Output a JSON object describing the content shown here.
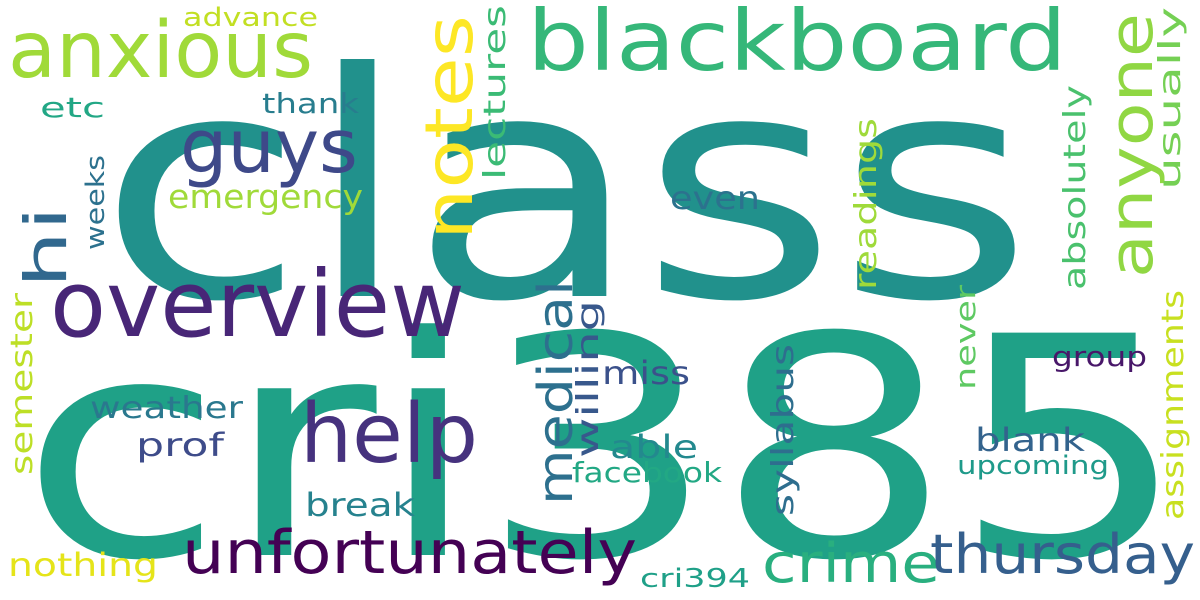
{
  "words": [
    {
      "text": "class",
      "color": "#21918c"
    },
    {
      "text": "cri385",
      "color": "#1fa187"
    },
    {
      "text": "overview",
      "color": "#482677"
    },
    {
      "text": "blackboard",
      "color": "#35b779"
    },
    {
      "text": "anxious",
      "color": "#a0da39"
    },
    {
      "text": "guys",
      "color": "#3e4989"
    },
    {
      "text": "notes",
      "color": "#fde725"
    },
    {
      "text": "help",
      "color": "#46327e"
    },
    {
      "text": "anyone",
      "color": "#90d743"
    },
    {
      "text": "hi",
      "color": "#31688e"
    },
    {
      "text": "unfortunately",
      "color": "#440154"
    },
    {
      "text": "crime",
      "color": "#29af7f"
    },
    {
      "text": "thursday",
      "color": "#355f8d"
    },
    {
      "text": "medical",
      "color": "#2d708e"
    },
    {
      "text": "emergency",
      "color": "#a0da39"
    },
    {
      "text": "lectures",
      "color": "#3bbb75"
    },
    {
      "text": "syllabus",
      "color": "#2e6e8e"
    },
    {
      "text": "readings",
      "color": "#9fda3a"
    },
    {
      "text": "absolutely",
      "color": "#4ac16d"
    },
    {
      "text": "usually",
      "color": "#75d054"
    },
    {
      "text": "assignments",
      "color": "#c8e020"
    },
    {
      "text": "semester",
      "color": "#bddf26"
    },
    {
      "text": "willing",
      "color": "#38588c"
    },
    {
      "text": "weather",
      "color": "#2a788e"
    },
    {
      "text": "never",
      "color": "#5ec962"
    },
    {
      "text": "advance",
      "color": "#c2df23"
    },
    {
      "text": "thank",
      "color": "#287d8e"
    },
    {
      "text": "etc",
      "color": "#22a785"
    },
    {
      "text": "weeks",
      "color": "#2c718e"
    },
    {
      "text": "even",
      "color": "#2c728e"
    },
    {
      "text": "miss",
      "color": "#3b518b"
    },
    {
      "text": "prof",
      "color": "#3e4c8a"
    },
    {
      "text": "able",
      "color": "#23898e"
    },
    {
      "text": "facebook",
      "color": "#22a884"
    },
    {
      "text": "blank",
      "color": "#33638d"
    },
    {
      "text": "upcoming",
      "color": "#1f9a8a"
    },
    {
      "text": "group",
      "color": "#481769"
    },
    {
      "text": "break",
      "color": "#26828e"
    },
    {
      "text": "nothing",
      "color": "#e5e419"
    },
    {
      "text": "cri394",
      "color": "#1fa088"
    }
  ]
}
